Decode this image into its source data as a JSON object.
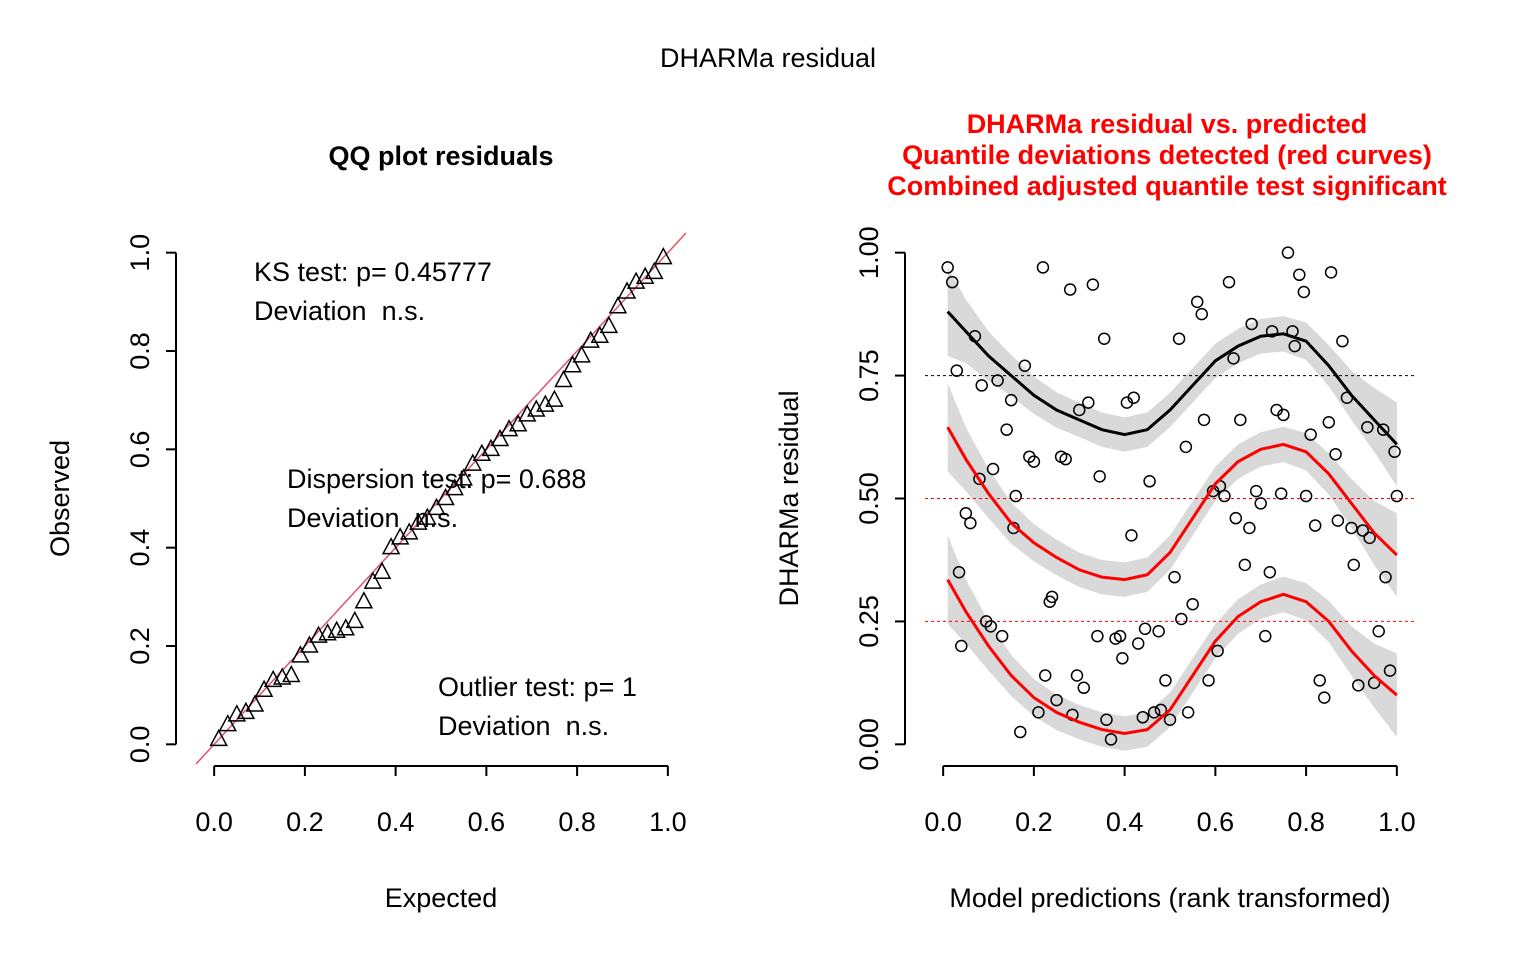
{
  "title": "DHARMa residual",
  "chart_data": [
    {
      "type": "qq",
      "title": "QQ plot residuals",
      "xlabel": "Expected",
      "ylabel": "Observed",
      "color": "#000000",
      "reference_line_color": "#df536b",
      "x": [
        0.01,
        0.03,
        0.05,
        0.07,
        0.09,
        0.11,
        0.13,
        0.15,
        0.17,
        0.19,
        0.21,
        0.23,
        0.25,
        0.27,
        0.29,
        0.31,
        0.33,
        0.35,
        0.37,
        0.39,
        0.41,
        0.43,
        0.45,
        0.47,
        0.49,
        0.51,
        0.53,
        0.55,
        0.57,
        0.59,
        0.61,
        0.63,
        0.65,
        0.67,
        0.69,
        0.71,
        0.73,
        0.75,
        0.77,
        0.79,
        0.81,
        0.83,
        0.85,
        0.87,
        0.89,
        0.91,
        0.93,
        0.95,
        0.97,
        0.99
      ],
      "values": [
        0.01,
        0.04,
        0.06,
        0.065,
        0.08,
        0.11,
        0.13,
        0.135,
        0.14,
        0.18,
        0.2,
        0.22,
        0.225,
        0.23,
        0.235,
        0.25,
        0.29,
        0.33,
        0.35,
        0.4,
        0.42,
        0.43,
        0.45,
        0.46,
        0.48,
        0.5,
        0.52,
        0.54,
        0.57,
        0.59,
        0.6,
        0.62,
        0.64,
        0.65,
        0.67,
        0.68,
        0.69,
        0.7,
        0.74,
        0.77,
        0.79,
        0.82,
        0.83,
        0.85,
        0.89,
        0.92,
        0.94,
        0.95,
        0.96,
        0.99
      ],
      "xlim": [
        -0.04,
        1.04
      ],
      "ylim": [
        -0.04,
        1.04
      ],
      "xticks": [
        {
          "value": 0,
          "label": "0.0"
        },
        0.2,
        0.4,
        0.6,
        0.8,
        {
          "value": 1,
          "label": "1.0"
        }
      ],
      "yticks": [
        {
          "value": 0,
          "label": "0.0"
        },
        0.2,
        0.4,
        0.6,
        0.8,
        {
          "value": 1,
          "label": "1.0"
        }
      ],
      "annotations": [
        [
          "KS test: p= 0.45777",
          "Deviation  n.s."
        ],
        [
          "Dispersion test: p= 0.688",
          "Deviation  n.s."
        ],
        [
          "Outlier test: p= 1",
          "Deviation  n.s."
        ]
      ]
    },
    {
      "type": "residual",
      "title": [
        "DHARMa residual vs. predicted",
        "Quantile deviations detected (red curves)",
        "Combined adjusted quantile test significant"
      ],
      "title_color": "#ff0000",
      "xlabel": "Model predictions (rank transformed)",
      "ylabel": "DHARMa residual",
      "point_color": "#000000",
      "x": [
        0.01,
        0.02,
        0.03,
        0.035,
        0.04,
        0.05,
        0.06,
        0.07,
        0.08,
        0.085,
        0.095,
        0.105,
        0.11,
        0.12,
        0.13,
        0.14,
        0.15,
        0.16,
        0.155,
        0.17,
        0.18,
        0.19,
        0.2,
        0.21,
        0.22,
        0.225,
        0.235,
        0.24,
        0.25,
        0.26,
        0.27,
        0.28,
        0.285,
        0.295,
        0.3,
        0.31,
        0.32,
        0.33,
        0.34,
        0.345,
        0.355,
        0.36,
        0.37,
        0.38,
        0.39,
        0.395,
        0.405,
        0.415,
        0.42,
        0.43,
        0.44,
        0.445,
        0.455,
        0.465,
        0.475,
        0.48,
        0.49,
        0.5,
        0.51,
        0.52,
        0.525,
        0.535,
        0.54,
        0.55,
        0.56,
        0.57,
        0.575,
        0.585,
        0.595,
        0.605,
        0.61,
        0.62,
        0.63,
        0.64,
        0.645,
        0.655,
        0.665,
        0.675,
        0.68,
        0.69,
        0.7,
        0.71,
        0.72,
        0.725,
        0.735,
        0.745,
        0.75,
        0.76,
        0.77,
        0.775,
        0.785,
        0.795,
        0.8,
        0.81,
        0.82,
        0.83,
        0.84,
        0.85,
        0.855,
        0.865,
        0.87,
        0.88,
        0.89,
        0.9,
        0.905,
        0.915,
        0.925,
        0.935,
        0.94,
        0.95,
        0.96,
        0.97,
        0.975,
        0.985,
        0.995,
        1.0
      ],
      "values": [
        0.97,
        0.94,
        0.76,
        0.35,
        0.2,
        0.47,
        0.45,
        0.83,
        0.54,
        0.73,
        0.25,
        0.24,
        0.56,
        0.74,
        0.22,
        0.64,
        0.7,
        0.505,
        0.44,
        0.025,
        0.77,
        0.585,
        0.575,
        0.065,
        0.97,
        0.14,
        0.29,
        0.3,
        0.09,
        0.585,
        0.58,
        0.925,
        0.06,
        0.14,
        0.68,
        0.115,
        0.695,
        0.935,
        0.22,
        0.545,
        0.825,
        0.05,
        0.01,
        0.215,
        0.22,
        0.175,
        0.695,
        0.425,
        0.705,
        0.205,
        0.055,
        0.235,
        0.535,
        0.065,
        0.23,
        0.07,
        0.13,
        0.05,
        0.34,
        0.825,
        0.255,
        0.605,
        0.065,
        0.285,
        0.9,
        0.875,
        0.66,
        0.13,
        0.515,
        0.19,
        0.525,
        0.505,
        0.94,
        0.785,
        0.46,
        0.66,
        0.365,
        0.44,
        0.855,
        0.515,
        0.49,
        0.22,
        0.35,
        0.84,
        0.68,
        0.51,
        0.67,
        1.0,
        0.84,
        0.81,
        0.955,
        0.92,
        0.505,
        0.63,
        0.445,
        0.13,
        0.095,
        0.655,
        0.96,
        0.59,
        0.455,
        0.82,
        0.705,
        0.44,
        0.365,
        0.12,
        0.435,
        0.645,
        0.42,
        0.125,
        0.23,
        0.64,
        0.34,
        0.15,
        0.595,
        0.505
      ],
      "curve_x": [
        0.01,
        0.05,
        0.1,
        0.15,
        0.2,
        0.25,
        0.3,
        0.35,
        0.4,
        0.45,
        0.5,
        0.55,
        0.6,
        0.65,
        0.7,
        0.75,
        0.8,
        0.85,
        0.9,
        0.95,
        1.0
      ],
      "band_halfwidth": [
        0.09,
        0.065,
        0.05,
        0.042,
        0.038,
        0.036,
        0.035,
        0.035,
        0.035,
        0.035,
        0.035,
        0.035,
        0.035,
        0.035,
        0.035,
        0.036,
        0.038,
        0.042,
        0.05,
        0.065,
        0.085
      ],
      "band_color": "#d9d9d9",
      "curves": [
        {
          "color": "#000000",
          "values": [
            0.88,
            0.84,
            0.79,
            0.75,
            0.71,
            0.68,
            0.66,
            0.64,
            0.63,
            0.64,
            0.68,
            0.73,
            0.78,
            0.81,
            0.83,
            0.835,
            0.82,
            0.77,
            0.71,
            0.66,
            0.61
          ]
        },
        {
          "color": "#ff0000",
          "values": [
            0.645,
            0.58,
            0.51,
            0.45,
            0.41,
            0.38,
            0.355,
            0.34,
            0.335,
            0.345,
            0.39,
            0.46,
            0.53,
            0.575,
            0.6,
            0.61,
            0.595,
            0.55,
            0.49,
            0.43,
            0.385
          ]
        },
        {
          "color": "#ff0000",
          "values": [
            0.335,
            0.27,
            0.2,
            0.14,
            0.095,
            0.065,
            0.045,
            0.03,
            0.022,
            0.03,
            0.07,
            0.14,
            0.21,
            0.26,
            0.29,
            0.305,
            0.29,
            0.25,
            0.19,
            0.14,
            0.1
          ]
        }
      ],
      "hlines": [
        {
          "value": 0.25,
          "color": "#ff0000"
        },
        {
          "value": 0.5,
          "color": "#ff0000"
        },
        {
          "value": 0.75,
          "color": "#000000"
        }
      ],
      "xlim": [
        -0.04,
        1.04
      ],
      "ylim": [
        -0.04,
        1.04
      ],
      "xticks": [
        {
          "value": 0,
          "label": "0.0"
        },
        0.2,
        0.4,
        0.6,
        0.8,
        {
          "value": 1,
          "label": "1.0"
        }
      ],
      "yticks": [
        {
          "value": 0,
          "label": "0.00"
        },
        0.25,
        {
          "value": 0.5,
          "label": "0.50"
        },
        {
          "value": 0.75,
          "label": "0.75"
        },
        {
          "value": 1,
          "label": "1.00"
        }
      ]
    }
  ]
}
